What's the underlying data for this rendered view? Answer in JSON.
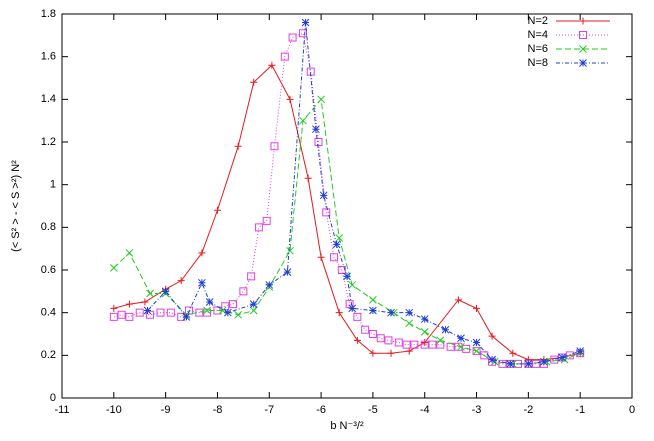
{
  "chart_data": {
    "type": "line",
    "xlabel": "b N⁻³/²",
    "ylabel": "(< S² > - < S >²) N²",
    "xlim": [
      -11,
      0
    ],
    "xticks": [
      -11,
      -10,
      -9,
      -8,
      -7,
      -6,
      -5,
      -4,
      -3,
      -2,
      -1,
      0
    ],
    "ylim": [
      0,
      1.8
    ],
    "yticks": [
      0,
      0.2,
      0.4,
      0.6,
      0.8,
      1,
      1.2,
      1.4,
      1.6,
      1.8
    ],
    "grid": false,
    "legend": "top-right",
    "series": [
      {
        "name": "N=2",
        "color": "#e41a1c",
        "marker": "plus",
        "dash": "",
        "x": [
          -10,
          -9.7,
          -9.4,
          -9.0,
          -8.7,
          -8.3,
          -8.0,
          -7.6,
          -7.3,
          -6.95,
          -6.6,
          -6.25,
          -6.0,
          -5.65,
          -5.3,
          -5.0,
          -4.65,
          -4.3,
          -4.0,
          -3.35,
          -3.0,
          -2.7,
          -2.3,
          -2.0,
          -1.7,
          -1.35,
          -1.0
        ],
        "values": [
          0.42,
          0.44,
          0.45,
          0.51,
          0.55,
          0.68,
          0.88,
          1.18,
          1.48,
          1.56,
          1.4,
          1.03,
          0.66,
          0.4,
          0.27,
          0.21,
          0.21,
          0.22,
          0.26,
          0.46,
          0.42,
          0.29,
          0.21,
          0.18,
          0.18,
          0.19,
          0.21
        ]
      },
      {
        "name": "N=4",
        "color": "#e040e0",
        "marker": "square",
        "dash": "1,2",
        "x": [
          -10,
          -9.85,
          -9.7,
          -9.5,
          -9.3,
          -9.1,
          -8.9,
          -8.7,
          -8.55,
          -8.35,
          -8.2,
          -8.0,
          -7.85,
          -7.7,
          -7.5,
          -7.35,
          -7.2,
          -7.05,
          -6.9,
          -6.7,
          -6.55,
          -6.35,
          -6.2,
          -6.05,
          -5.9,
          -5.75,
          -5.6,
          -5.45,
          -5.3,
          -5.15,
          -5.0,
          -4.85,
          -4.7,
          -4.5,
          -4.35,
          -4.2,
          -4.0,
          -3.85,
          -3.7,
          -3.5,
          -3.35,
          -3.2,
          -3.0,
          -2.85,
          -2.7,
          -2.5,
          -2.35,
          -2.2,
          -2.0,
          -1.85,
          -1.7,
          -1.5,
          -1.35,
          -1.2,
          -1.0
        ],
        "values": [
          0.38,
          0.39,
          0.38,
          0.4,
          0.39,
          0.4,
          0.4,
          0.38,
          0.41,
          0.4,
          0.4,
          0.41,
          0.43,
          0.44,
          0.5,
          0.57,
          0.8,
          0.83,
          1.18,
          1.6,
          1.69,
          1.71,
          1.53,
          1.2,
          0.87,
          0.66,
          0.6,
          0.44,
          0.38,
          0.32,
          0.3,
          0.28,
          0.27,
          0.26,
          0.25,
          0.25,
          0.25,
          0.25,
          0.25,
          0.24,
          0.24,
          0.23,
          0.22,
          0.2,
          0.17,
          0.16,
          0.16,
          0.16,
          0.16,
          0.16,
          0.16,
          0.18,
          0.19,
          0.2,
          0.21
        ]
      },
      {
        "name": "N=6",
        "color": "#22cc22",
        "marker": "cross",
        "dash": "6,3",
        "x": [
          -10,
          -9.7,
          -9.3,
          -9.0,
          -8.6,
          -8.2,
          -7.9,
          -7.6,
          -7.3,
          -7.0,
          -6.6,
          -6.35,
          -6.0,
          -5.65,
          -5.4,
          -5.0,
          -4.6,
          -4.3,
          -4.0,
          -3.7,
          -3.3,
          -3.0,
          -2.65,
          -2.3,
          -2.0,
          -1.65,
          -1.3,
          -1.0
        ],
        "values": [
          0.61,
          0.68,
          0.49,
          0.49,
          0.39,
          0.41,
          0.41,
          0.39,
          0.41,
          0.52,
          0.69,
          1.3,
          1.4,
          0.75,
          0.53,
          0.46,
          0.4,
          0.35,
          0.31,
          0.27,
          0.24,
          0.22,
          0.17,
          0.16,
          0.16,
          0.17,
          0.18,
          0.21
        ]
      },
      {
        "name": "N=8",
        "color": "#1f3fd0",
        "marker": "star",
        "dash": "4,2,1,2",
        "x": [
          -9.35,
          -9.0,
          -8.6,
          -8.3,
          -8.15,
          -7.8,
          -7.3,
          -7.0,
          -6.65,
          -6.3,
          -6.1,
          -5.95,
          -5.7,
          -5.5,
          -5.4,
          -5.0,
          -4.65,
          -4.3,
          -4.0,
          -3.6,
          -3.3,
          -3.0,
          -2.7,
          -2.35,
          -2.0,
          -1.7,
          -1.35,
          -1.0
        ],
        "values": [
          0.41,
          0.5,
          0.38,
          0.54,
          0.45,
          0.4,
          0.44,
          0.53,
          0.59,
          1.76,
          1.26,
          0.95,
          0.72,
          0.57,
          0.42,
          0.41,
          0.4,
          0.4,
          0.37,
          0.32,
          0.28,
          0.26,
          0.18,
          0.16,
          0.16,
          0.17,
          0.19,
          0.22
        ]
      }
    ]
  }
}
